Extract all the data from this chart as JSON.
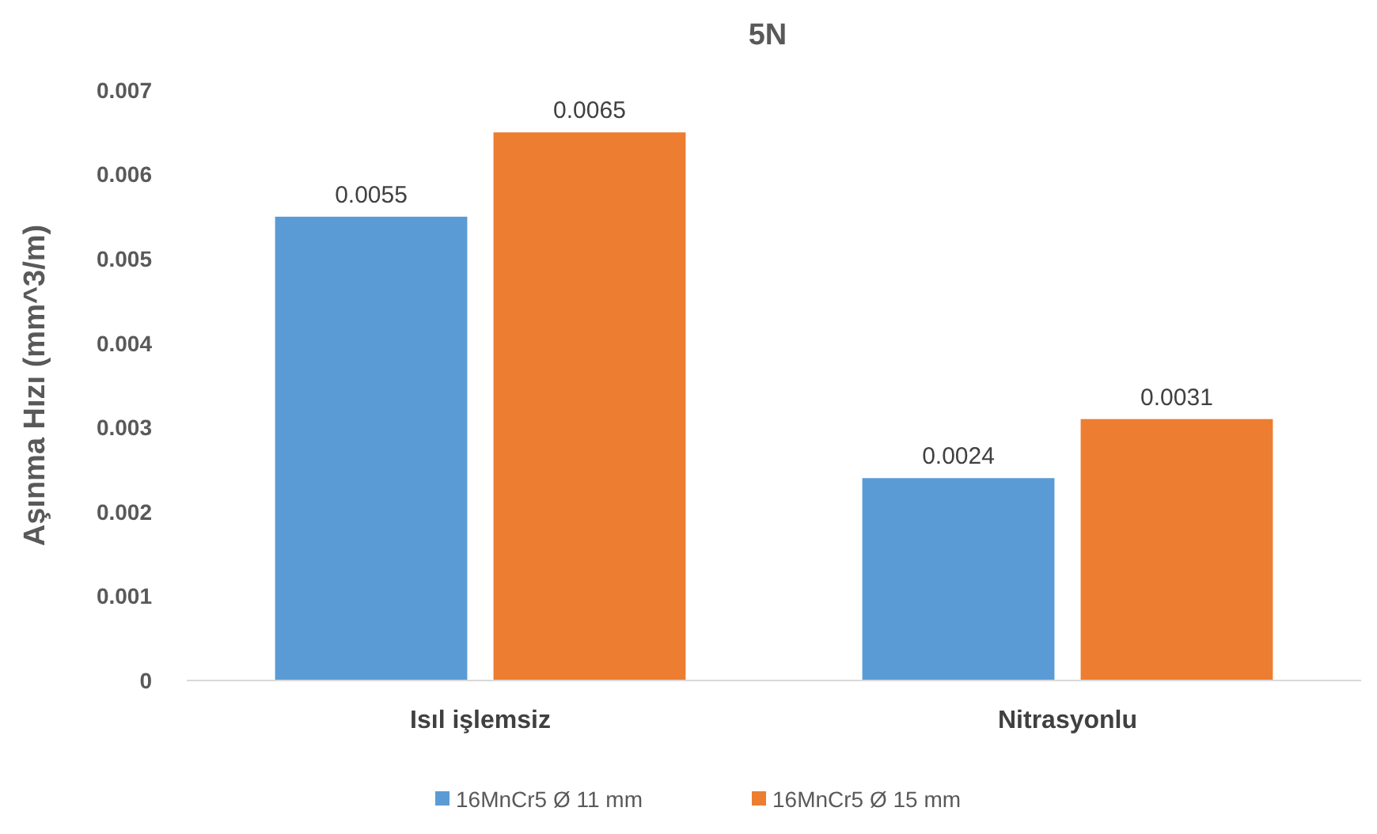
{
  "chart_data": {
    "type": "bar",
    "title": "5N",
    "ylabel": "Aşınma Hızı (mm^3/m)",
    "categories": [
      "Isıl işlemsiz",
      "Nitrasyonlu"
    ],
    "series": [
      {
        "name": "16MnCr5 Ø 11 mm",
        "color": "#5b9bd5",
        "values": [
          0.0055,
          0.0024
        ]
      },
      {
        "name": "16MnCr5 Ø 15 mm",
        "color": "#ed7d31",
        "values": [
          0.0065,
          0.0031
        ]
      }
    ],
    "ylim": [
      0,
      0.007
    ],
    "yticks": [
      {
        "value": 0,
        "label": "0"
      },
      0.001,
      0.002,
      0.003,
      0.004,
      0.005,
      0.006,
      0.007
    ],
    "data_labels": true,
    "grid": false,
    "legend": "bottom"
  }
}
